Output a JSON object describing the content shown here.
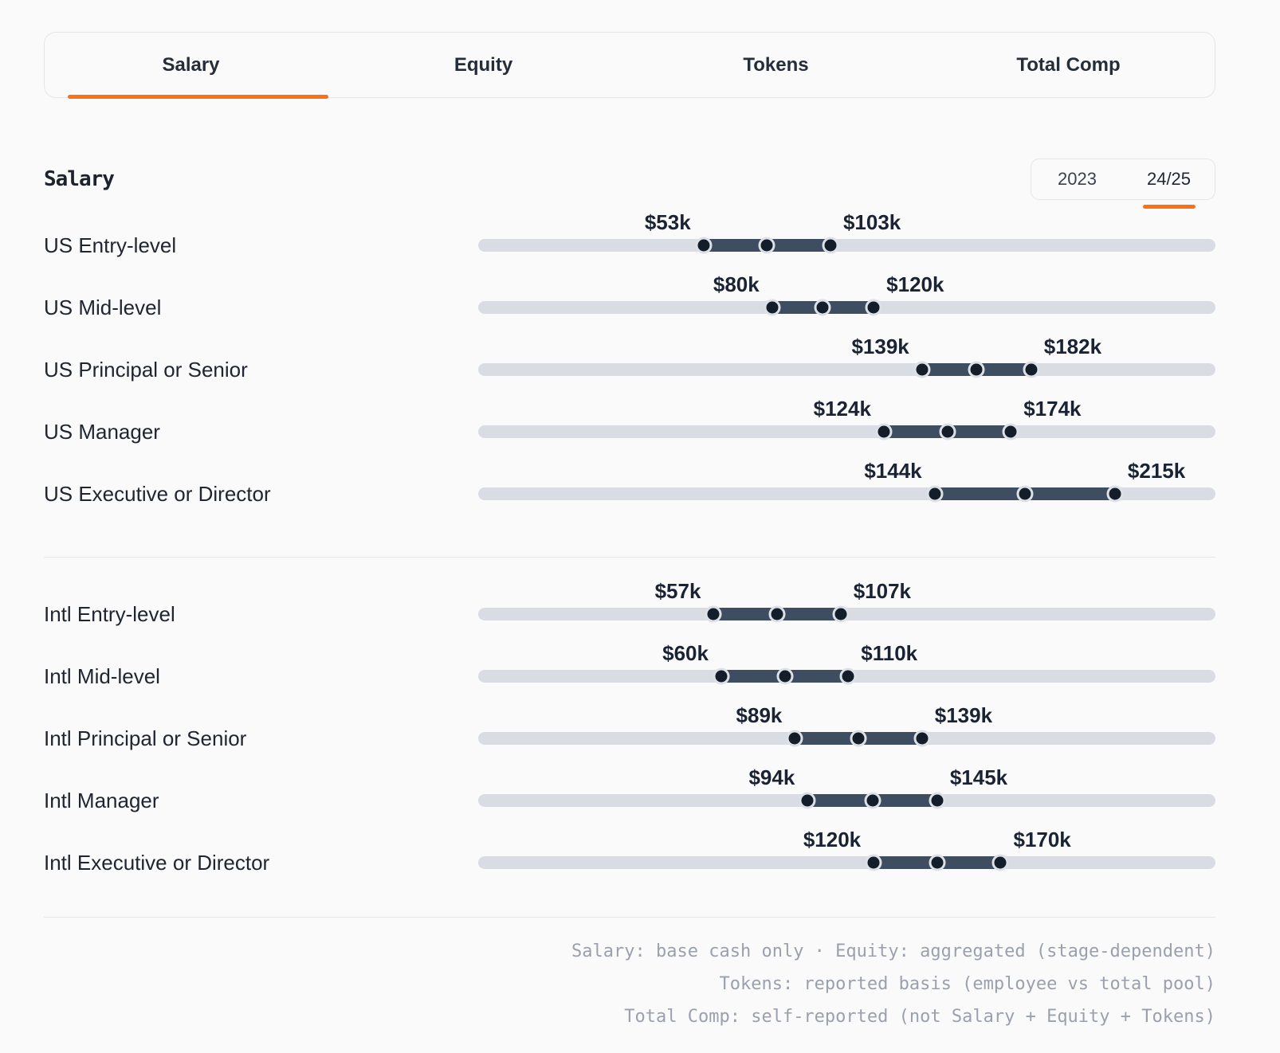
{
  "tabs": [
    {
      "label": "Salary",
      "active": true
    },
    {
      "label": "Equity",
      "active": false
    },
    {
      "label": "Tokens",
      "active": false
    },
    {
      "label": "Total Comp",
      "active": false
    }
  ],
  "section": {
    "title": "Salary"
  },
  "year_toggle": {
    "options": [
      "2023",
      "24/25"
    ],
    "selected": "24/25"
  },
  "slider_groups": [
    {
      "rows": [
        {
          "label": "US Entry-level",
          "min": 53,
          "max": 103,
          "min_label": "$53k",
          "max_label": "$103k"
        },
        {
          "label": "US Mid-level",
          "min": 80,
          "max": 120,
          "min_label": "$80k",
          "max_label": "$120k"
        },
        {
          "label": "US Principal or Senior",
          "min": 139,
          "max": 182,
          "min_label": "$139k",
          "max_label": "$182k"
        },
        {
          "label": "US Manager",
          "min": 124,
          "max": 174,
          "min_label": "$124k",
          "max_label": "$174k"
        },
        {
          "label": "US Executive or Director",
          "min": 144,
          "max": 215,
          "min_label": "$144k",
          "max_label": "$215k"
        }
      ]
    },
    {
      "rows": [
        {
          "label": "Intl Entry-level",
          "min": 57,
          "max": 107,
          "min_label": "$57k",
          "max_label": "$107k"
        },
        {
          "label": "Intl Mid-level",
          "min": 60,
          "max": 110,
          "min_label": "$60k",
          "max_label": "$110k"
        },
        {
          "label": "Intl Principal or Senior",
          "min": 89,
          "max": 139,
          "min_label": "$89k",
          "max_label": "$139k"
        },
        {
          "label": "Intl Manager",
          "min": 94,
          "max": 145,
          "min_label": "$94k",
          "max_label": "$145k"
        },
        {
          "label": "Intl Executive or Director",
          "min": 120,
          "max": 170,
          "min_label": "$120k",
          "max_label": "$170k"
        }
      ]
    }
  ],
  "footnotes": [
    "Salary: base cash only · Equity: aggregated (stage-dependent)",
    "Tokens: reported basis (employee vs total pool)",
    "Total Comp: self-reported (not Salary + Equity + Tokens)"
  ],
  "colors": {
    "accent_orange": "#f97316",
    "range_fill": "#3e4d60",
    "track": "#d9dde3",
    "handle": "#141e2b"
  }
}
